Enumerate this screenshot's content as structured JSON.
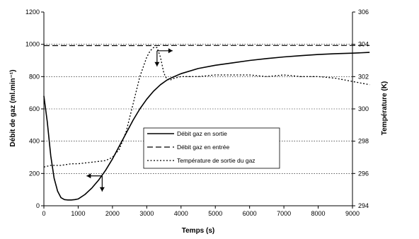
{
  "chart_data": {
    "type": "line",
    "xlabel": "Temps (s)",
    "ylabel": "Débit de gaz (ml.min⁻¹)",
    "y2label": "Température (K)",
    "xlim": [
      0,
      9000
    ],
    "ylim": [
      0,
      1200
    ],
    "y2lim": [
      294,
      306
    ],
    "x_ticks": [
      "0",
      "1000",
      "2000",
      "3000",
      "4000",
      "5000",
      "6000",
      "7000",
      "8000",
      "9000"
    ],
    "y_ticks": [
      "0",
      "200",
      "400",
      "600",
      "800",
      "1000",
      "1200"
    ],
    "y2_ticks": [
      "294",
      "296",
      "298",
      "300",
      "302",
      "304",
      "306"
    ],
    "grid": "horizontal dotted",
    "legend_position": "center-right",
    "series": [
      {
        "name": "Débit gaz en sortie",
        "axis": "left",
        "style": "solid",
        "x": [
          0,
          100,
          200,
          300,
          400,
          500,
          600,
          700,
          800,
          900,
          1000,
          1200,
          1400,
          1600,
          1800,
          2000,
          2200,
          2400,
          2600,
          2800,
          3000,
          3200,
          3400,
          3600,
          3800,
          4000,
          4500,
          5000,
          5500,
          6000,
          6500,
          7000,
          7500,
          8000,
          8500,
          9000,
          9500
        ],
        "y": [
          680,
          520,
          310,
          170,
          90,
          50,
          38,
          36,
          36,
          38,
          42,
          70,
          110,
          160,
          220,
          290,
          370,
          450,
          530,
          600,
          660,
          710,
          750,
          780,
          800,
          818,
          850,
          870,
          885,
          900,
          912,
          922,
          930,
          937,
          942,
          945,
          950
        ]
      },
      {
        "name": "Débit gaz en entrée",
        "axis": "left",
        "style": "dashed",
        "x": [
          0,
          1000,
          2000,
          3000,
          4000,
          5000,
          6000,
          7000,
          8000,
          9000,
          9500
        ],
        "y": [
          992,
          992,
          992,
          992,
          993,
          993,
          993,
          993,
          993,
          993,
          993
        ]
      },
      {
        "name": "Température de sortie du gaz",
        "axis": "right",
        "style": "dotted",
        "x": [
          0,
          200,
          500,
          800,
          1000,
          1400,
          1800,
          2000,
          2200,
          2400,
          2600,
          2800,
          3000,
          3100,
          3200,
          3300,
          3400,
          3500,
          3600,
          3700,
          3800,
          4000,
          4500,
          5000,
          5500,
          6000,
          6500,
          7000,
          7500,
          8000,
          8500,
          9000,
          9500
        ],
        "y": [
          296.4,
          296.5,
          296.5,
          296.6,
          296.6,
          296.7,
          296.8,
          297.0,
          297.5,
          298.6,
          300.3,
          302.0,
          303.2,
          303.6,
          303.8,
          303.8,
          303.2,
          302.2,
          301.8,
          301.8,
          301.9,
          302.0,
          302.0,
          302.1,
          302.1,
          302.1,
          302.0,
          302.1,
          302.0,
          302.0,
          301.9,
          301.7,
          301.5
        ]
      }
    ],
    "legend": [
      {
        "label": "Débit gaz en sortie",
        "style": "solid"
      },
      {
        "label": "Débit gaz en entrée",
        "style": "dashed"
      },
      {
        "label": "Température de sortie du gaz",
        "style": "dotted"
      }
    ],
    "annotations": [
      {
        "type": "axis-arrow",
        "points_to": "left",
        "anchor_x": 1700,
        "anchor_y": 185
      },
      {
        "type": "axis-arrow",
        "points_to": "right",
        "anchor_x": 3300,
        "anchor_y": 960
      }
    ]
  }
}
